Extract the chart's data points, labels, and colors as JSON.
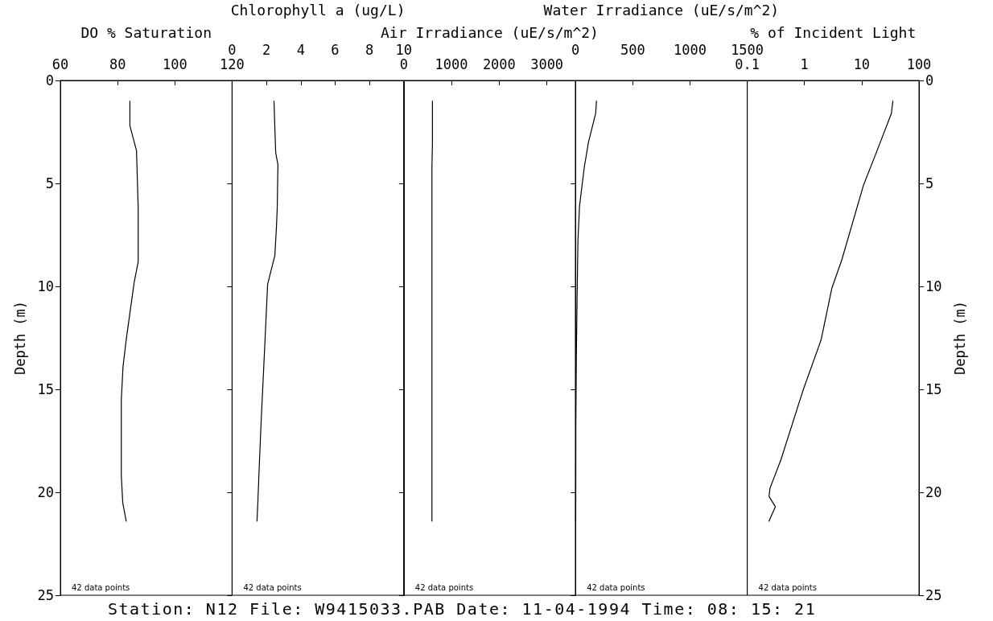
{
  "chart_data": [
    {
      "type": "line",
      "xlabel": "DO % Saturation",
      "ylabel": "Depth (m)",
      "xlim": [
        60,
        120
      ],
      "xticks": [
        60,
        80,
        100,
        120
      ],
      "ylim": [
        25,
        0
      ],
      "yticks": [
        0,
        5,
        10,
        15,
        20,
        25
      ],
      "marker": "none",
      "line_style": "solid",
      "annotations": [
        "42 data points",
        "Station: N12 File: W9415033.PAB Date: 11-04-1994 Time: 08: 15: 21"
      ],
      "series": [
        {
          "color": "#000000",
          "x": [
            84.3,
            84.3,
            86.6,
            87.2,
            87.2,
            85.8,
            83,
            81.9,
            81.3,
            81.3,
            81.8,
            83
          ],
          "values": [
            1,
            2.2,
            3.4,
            6.2,
            8.8,
            9.8,
            12.6,
            13.9,
            15.5,
            19.2,
            20.5,
            21.4
          ]
        }
      ]
    },
    {
      "type": "line",
      "xlabel": "Chlorophyll a (ug/L)",
      "xlim": [
        0,
        10
      ],
      "xticks": [
        0,
        2,
        4,
        6,
        8,
        10
      ],
      "ylim": [
        25,
        0
      ],
      "yticks": [
        0,
        5,
        10,
        15,
        20,
        25
      ],
      "tick_labels": "x",
      "marker": "none",
      "line_style": "solid",
      "annotations": [
        "42 data points"
      ],
      "series": [
        {
          "color": "#000000",
          "x": [
            2.44,
            2.54,
            2.67,
            2.63,
            2.58,
            2.49,
            2.07,
            1.92,
            1.69,
            1.6,
            1.5,
            1.45
          ],
          "values": [
            1,
            3.5,
            4.1,
            6.2,
            7.2,
            8.5,
            9.9,
            12.6,
            16.6,
            18.4,
            20.5,
            21.4
          ]
        }
      ]
    },
    {
      "type": "line",
      "xlabel": "Air Irradiance (uE/s/m^2)",
      "xlim": [
        0,
        3600
      ],
      "xticks": [
        0,
        1000,
        2000,
        3000
      ],
      "ylim": [
        25,
        0
      ],
      "yticks": [
        0,
        5,
        10,
        15,
        20,
        25
      ],
      "tick_labels": "x",
      "marker": "none",
      "line_style": "solid",
      "annotations": [
        "42 data points"
      ],
      "series": [
        {
          "color": "#000000",
          "x": [
            600,
            600,
            590,
            590
          ],
          "values": [
            1,
            3.1,
            4.2,
            21.4
          ]
        }
      ]
    },
    {
      "type": "line",
      "xlabel": "Water Irradiance (uE/s/m^2)",
      "xlim": [
        0,
        1500
      ],
      "xticks": [
        0,
        500,
        1000,
        1500
      ],
      "ylim": [
        25,
        0
      ],
      "yticks": [
        0,
        5,
        10,
        15,
        20,
        25
      ],
      "tick_labels": "x",
      "marker": "none",
      "line_style": "solid",
      "annotations": [
        "42 data points"
      ],
      "series": [
        {
          "color": "#000000",
          "x": [
            183,
            176,
            113,
            77,
            35,
            21,
            14,
            7,
            3,
            2
          ],
          "values": [
            1,
            1.6,
            3,
            4.2,
            6.1,
            7.8,
            10.4,
            13.5,
            16.6,
            21.4
          ]
        }
      ]
    },
    {
      "type": "line",
      "xlabel": "% of Incident Light",
      "ylabel": "Depth (m)",
      "log": "x",
      "xlim": [
        0.1,
        100
      ],
      "xticks": [
        0.1,
        1,
        10,
        100
      ],
      "ylim": [
        25,
        0
      ],
      "yticks": [
        0,
        5,
        10,
        15,
        20,
        25
      ],
      "marker": "none",
      "line_style": "solid",
      "annotations": [
        "42 data points"
      ],
      "series": [
        {
          "color": "#000000",
          "x": [
            35,
            33,
            18,
            10.7,
            4.5,
            3,
            1.95,
            0.93,
            0.39,
            0.25,
            0.24,
            0.31,
            0.24
          ],
          "values": [
            1,
            1.6,
            3.5,
            5.1,
            8.7,
            10.1,
            12.6,
            15.1,
            18.4,
            19.8,
            20.2,
            20.7,
            21.4
          ]
        }
      ]
    }
  ]
}
